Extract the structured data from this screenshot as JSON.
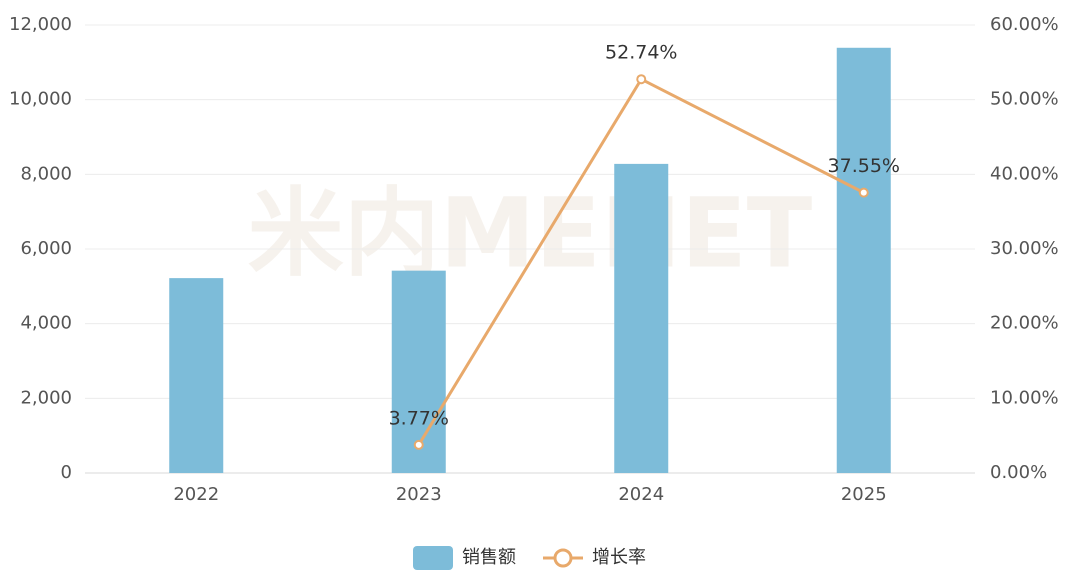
{
  "chart_data": {
    "type": "bar",
    "watermark": "米内MENET",
    "categories": [
      "2022",
      "2023",
      "2024",
      "2025"
    ],
    "series": [
      {
        "name": "销售额",
        "type": "bar",
        "color": "#7dbcd9",
        "values": [
          5220,
          5420,
          8280,
          11390
        ]
      },
      {
        "name": "增长率",
        "type": "line",
        "axis": "y2",
        "color": "#e8a96b",
        "values": [
          null,
          3.77,
          52.74,
          37.55
        ],
        "value_labels": [
          null,
          "3.77%",
          "52.74%",
          "37.55%"
        ]
      }
    ],
    "ylim": [
      0,
      12000
    ],
    "yticks": [
      0,
      {
        "value": 2000,
        "label": "2,000"
      },
      {
        "value": 4000,
        "label": "4,000"
      },
      {
        "value": 6000,
        "label": "6,000"
      },
      {
        "value": 8000,
        "label": "8,000"
      },
      {
        "value": 10000,
        "label": "10,000"
      },
      {
        "value": 12000,
        "label": "12,000"
      }
    ],
    "y2lim": [
      0,
      60
    ],
    "y2ticks": [
      {
        "value": 0,
        "label": "0.00%"
      },
      {
        "value": 10,
        "label": "10.00%"
      },
      {
        "value": 20,
        "label": "20.00%"
      },
      {
        "value": 30,
        "label": "30.00%"
      },
      {
        "value": 40,
        "label": "40.00%"
      },
      {
        "value": 50,
        "label": "50.00%"
      },
      {
        "value": 60,
        "label": "60.00%"
      }
    ],
    "grid": true,
    "legend": "bottom"
  }
}
